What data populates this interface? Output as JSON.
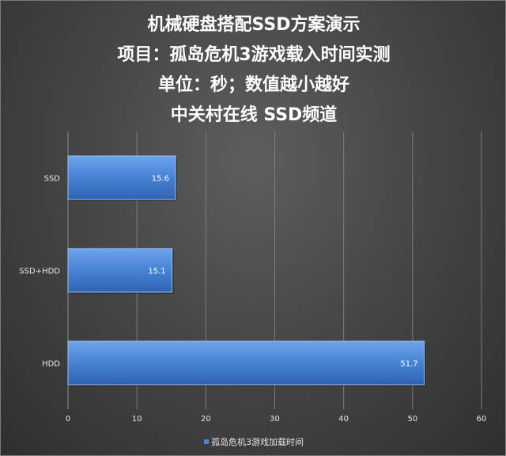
{
  "chart_data": {
    "type": "bar",
    "orientation": "horizontal",
    "title_lines": [
      "机械硬盘搭配SSD方案演示",
      "项目：孤岛危机3游戏载入时间实测",
      "单位：秒；数值越小越好",
      "中关村在线  SSD频道"
    ],
    "categories": [
      "SSD",
      "SSD+HDD",
      "HDD"
    ],
    "series": [
      {
        "name": "孤岛危机3游戏加载时间",
        "values": [
          15.6,
          15.1,
          51.7
        ],
        "color": "#4a86d8"
      }
    ],
    "xlim": [
      0,
      60
    ],
    "xticks": [
      0,
      10,
      20,
      30,
      40,
      50,
      60
    ],
    "grid": "vertical",
    "legend_position": "bottom",
    "xlabel": "",
    "ylabel": ""
  }
}
